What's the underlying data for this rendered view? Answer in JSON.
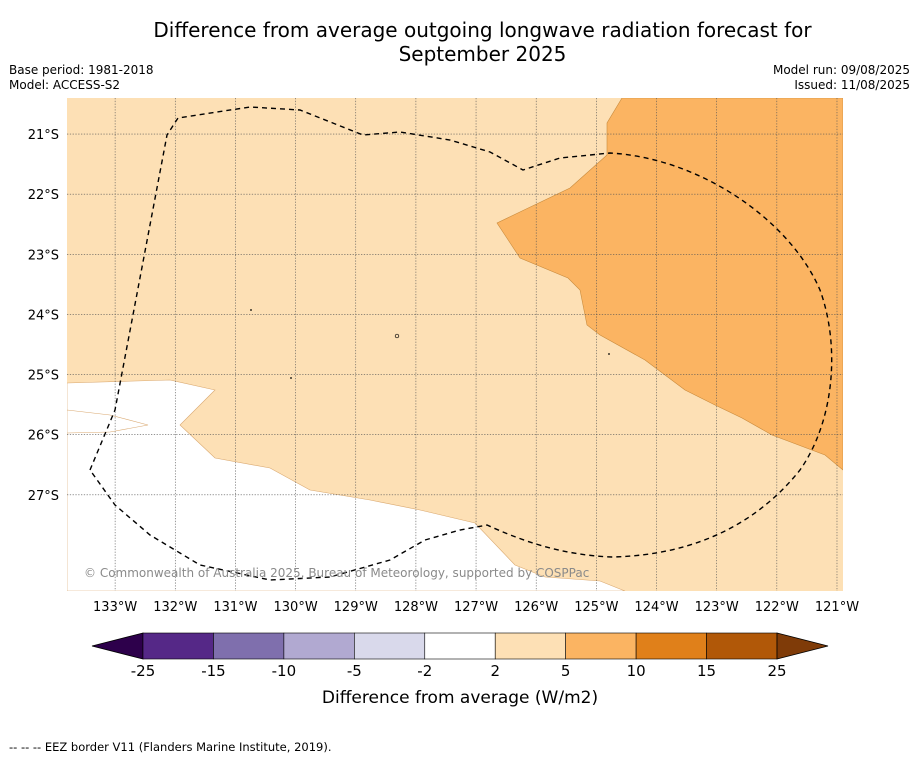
{
  "title_line1": "Difference from average outgoing longwave radiation forecast for",
  "title_line2": "September 2025",
  "base_period": "Base period: 1981-2018",
  "model": "Model: ACCESS-S2",
  "model_run": "Model run: 09/08/2025",
  "issued": "Issued: 11/08/2025",
  "copyright": "© Commonwealth of Australia 2025, Bureau of Meteorology, supported by COSPPac",
  "footnote": "--  --  -- EEZ border V11 (Flanders Marine Institute, 2019).",
  "map": {
    "lon_labels": [
      "133°W",
      "132°W",
      "131°W",
      "130°W",
      "129°W",
      "128°W",
      "127°W",
      "126°W",
      "125°W",
      "124°W",
      "123°W",
      "122°W",
      "121°W"
    ],
    "lat_labels": [
      "21°S",
      "22°S",
      "23°S",
      "24°S",
      "25°S",
      "26°S",
      "27°S"
    ],
    "lon_values": [
      -133,
      -132,
      -131,
      -130,
      -129,
      -128,
      -127,
      -126,
      -125,
      -124,
      -123,
      -122,
      -121
    ],
    "lat_values": [
      -21,
      -22,
      -23,
      -24,
      -25,
      -26,
      -27
    ],
    "lon_range": [
      -133.8,
      -120.9
    ],
    "lat_range": [
      -28.6,
      -20.4
    ],
    "grid": true,
    "region_colors": {
      "2_to_5": "#fde0b5",
      "5_to_10": "#fbb462",
      "minus2_to_2": "#ffffff"
    }
  },
  "colorbar": {
    "label": "Difference from average (W/m2)",
    "ticks": [
      "-25",
      "-15",
      "-10",
      "-5",
      "-2",
      "2",
      "5",
      "10",
      "15",
      "25"
    ],
    "colors": [
      "#552887",
      "#7f6fad",
      "#b1a9d1",
      "#d9d9eb",
      "#ffffff",
      "#fde0b5",
      "#fbb462",
      "#e0801a",
      "#b15808"
    ],
    "extend_low_color": "#2d004b",
    "extend_high_color": "#7f3b08"
  }
}
